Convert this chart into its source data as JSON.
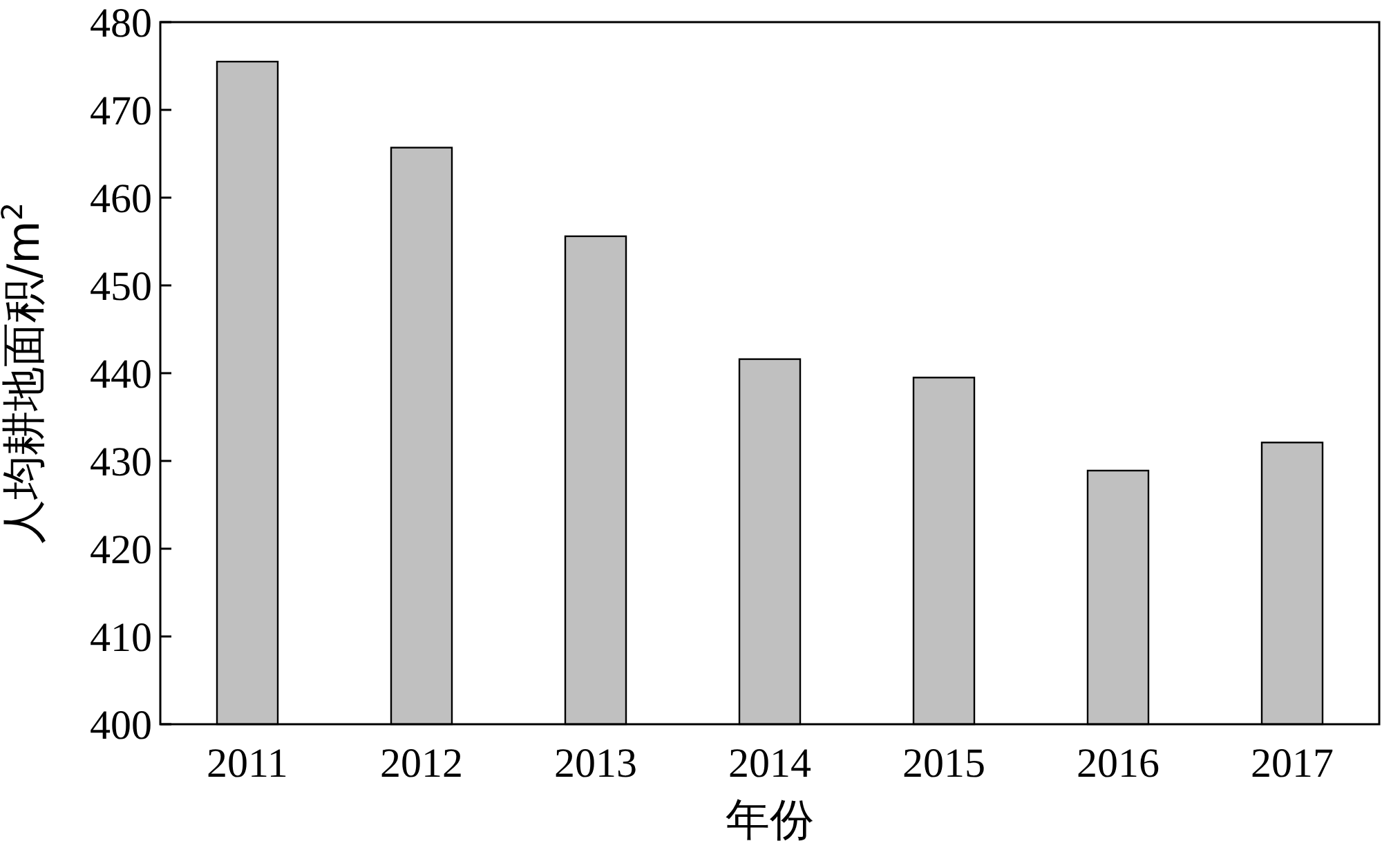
{
  "chart_data": {
    "type": "bar",
    "xlabel": "年份",
    "ylabel": "人均耕地面积/m$^{2}$",
    "categories": [
      "2011",
      "2012",
      "2013",
      "2014",
      "2015",
      "2016",
      "2017"
    ],
    "values": [
      475.5,
      465.7,
      455.6,
      441.6,
      439.5,
      428.9,
      432.1
    ],
    "color": "#c0c0c0",
    "ylim": [
      400,
      480
    ],
    "yticks": [
      400,
      410,
      420,
      430,
      440,
      450,
      460,
      470,
      480
    ],
    "grid": false
  }
}
